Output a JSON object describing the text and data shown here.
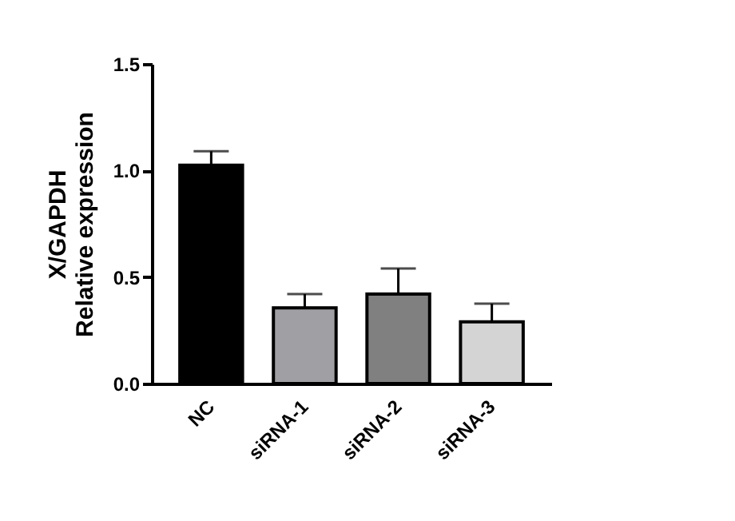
{
  "chart_data": {
    "type": "bar",
    "ylabel": "X/GAPDH\nRelative expression",
    "categories": [
      "NC",
      "siRNA-1",
      "siRNA-2",
      "siRNA-3"
    ],
    "values": [
      1.025,
      0.355,
      0.42,
      0.29
    ],
    "errors": [
      [
        1.025,
        1.09
      ],
      [
        0.355,
        0.42
      ],
      [
        0.42,
        0.54
      ],
      [
        0.29,
        0.375
      ]
    ],
    "colors": [
      "#000000",
      "#a0a0a4",
      "#808080",
      "#d4d4d4"
    ],
    "ylim": [
      0,
      1.5
    ],
    "yticks": [
      {
        "value": 0,
        "label": "0.0"
      },
      0.5,
      {
        "value": 1,
        "label": "1.0"
      },
      1.5
    ],
    "grid": false,
    "legend": false
  }
}
